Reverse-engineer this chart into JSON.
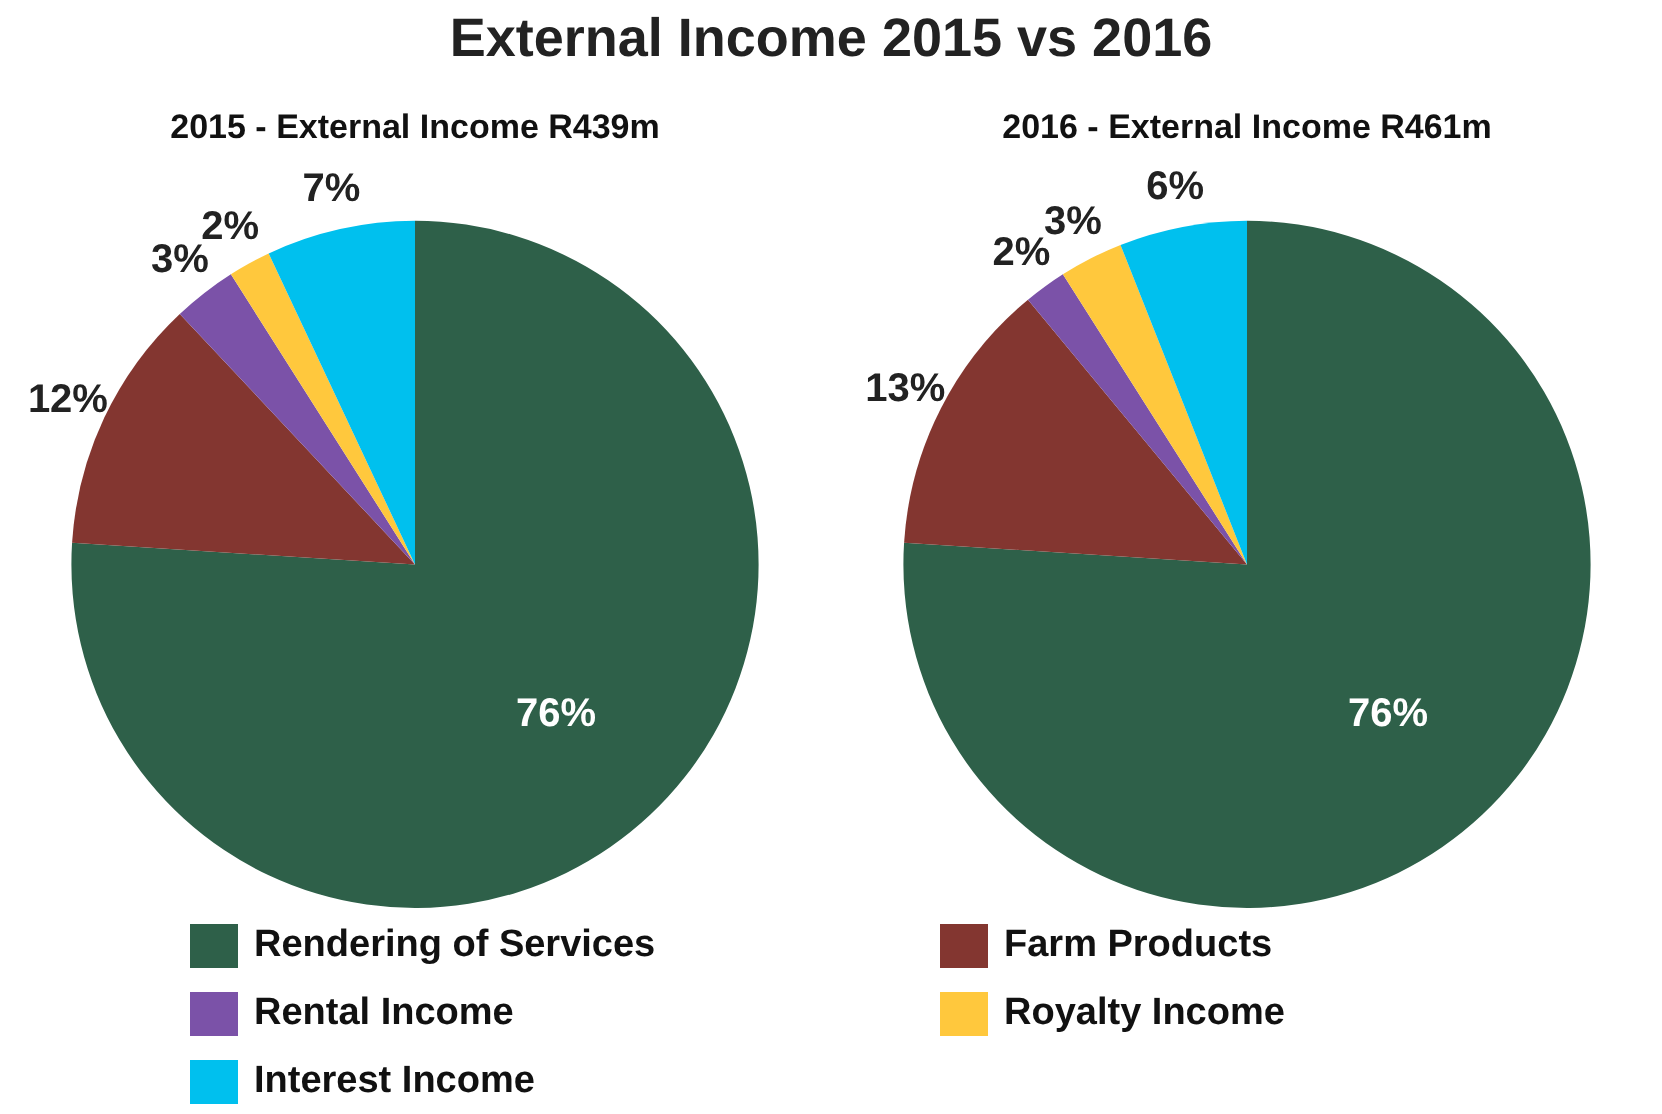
{
  "chart_data": [
    {
      "type": "pie",
      "title": "External Income 2015 vs 2016",
      "subtitle": "2015 - External Income R439m",
      "categories": [
        "Rendering of Services",
        "Farm Products",
        "Rental Income",
        "Royalty Income",
        "Interest Income"
      ],
      "values": [
        76,
        12,
        3,
        2,
        7
      ],
      "colors": [
        "#2e6049",
        "#833630",
        "#7b52a8",
        "#ffc83d",
        "#00c0ee"
      ],
      "value_labels": [
        "76%",
        "12%",
        "3%",
        "2%",
        "7%"
      ],
      "legend": "bottom"
    },
    {
      "type": "pie",
      "subtitle": "2016 - External Income R461m",
      "values": [
        76,
        13,
        2,
        3,
        6
      ],
      "colors": [
        "#2e6049",
        "#833630",
        "#7b52a8",
        "#ffc83d",
        "#00c0ee"
      ],
      "value_labels": [
        "76%",
        "13%",
        "2%",
        "3%",
        "6%"
      ]
    }
  ]
}
